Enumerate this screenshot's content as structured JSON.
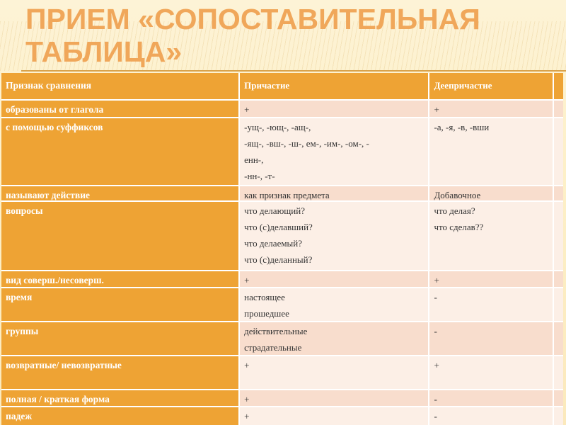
{
  "title": "ПРИЕМ «СОПОСТАВИТЕЛЬНАЯ ТАБЛИЦА»",
  "colors": {
    "header": "#eea334",
    "row_pink": "#f8ddcd",
    "row_light": "#fcefe6",
    "title": "#f0a75a"
  },
  "table": {
    "headers": [
      "Признак сравнения",
      "Причастие",
      "Деепричастие"
    ],
    "rows": [
      {
        "label": "образованы от глагола",
        "participle": [
          "+"
        ],
        "gerund": [
          "+"
        ]
      },
      {
        "label": "с помощью суффиксов",
        "participle": [
          "-ущ-, -ющ-, -ащ-,",
          "-ящ-, -вш-, -ш-, ем-, -им-, -ом-, -",
          "енн-,",
          "-нн-, -т-"
        ],
        "gerund": [
          "-а, -я, -в, -вши"
        ]
      },
      {
        "label": "называют действие",
        "participle": [
          "как признак предмета"
        ],
        "gerund": [
          "Добавочное"
        ]
      },
      {
        "label": "вопросы",
        "participle": [
          "что делающий?",
          "что (с)делавший?",
          "что делаемый?",
          "что (с)деланный?"
        ],
        "gerund": [
          "что делая?",
          "что сделав??"
        ]
      },
      {
        "label": "вид соверш./несоверш.",
        "participle": [
          "+"
        ],
        "gerund": [
          "+"
        ]
      },
      {
        "label": "время",
        "participle": [
          "настоящее",
          "прошедшее"
        ],
        "gerund": [
          "-"
        ]
      },
      {
        "label": "группы",
        "participle": [
          "действительные",
          "страдательные"
        ],
        "gerund": [
          "-"
        ]
      },
      {
        "label": "возвратные/ невозвратные",
        "participle": [
          "+"
        ],
        "gerund": [
          "+"
        ]
      },
      {
        "label": "полная / краткая форма",
        "participle": [
          "+"
        ],
        "gerund": [
          "-"
        ]
      },
      {
        "label": "падеж",
        "participle": [
          "+"
        ],
        "gerund": [
          "-"
        ]
      }
    ]
  }
}
